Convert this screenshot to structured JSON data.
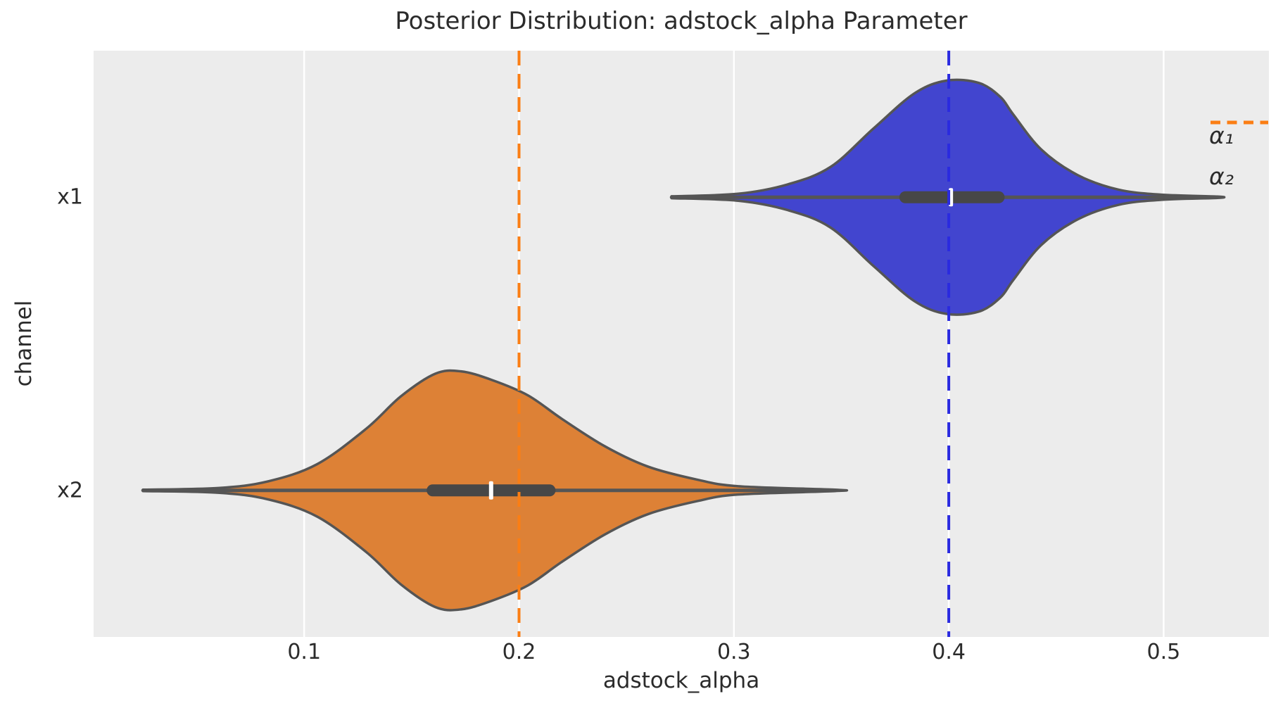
{
  "style": {
    "figure_bg": "#ffffff",
    "plot_bg": "#ececec",
    "grid_color": "#ffffff",
    "outline_color": "#555555",
    "whisker_color": "#555555",
    "box_color": "#474747",
    "median_color": "#ffffff",
    "text_color": "#2b2b2b"
  },
  "chart_data": {
    "type": "violin",
    "orientation": "horizontal",
    "title": "Posterior Distribution: adstock_alpha Parameter",
    "xlabel": "adstock_alpha",
    "ylabel": "channel",
    "categories": [
      "x1",
      "x2"
    ],
    "xlim": [
      0.002,
      0.549
    ],
    "xticks": [
      0.1,
      0.2,
      0.3,
      0.4,
      0.5
    ],
    "grid": true,
    "legend_position": "upper right",
    "series": [
      {
        "channel": "x1",
        "fill_color": "#4245cf",
        "median": 0.401,
        "q1": 0.377,
        "q3": 0.426,
        "whisker_low": 0.271,
        "whisker_high": 0.525,
        "kde_support": [
          0.271,
          0.525
        ],
        "max_halfwidth_frac": 0.199,
        "kde_profile": [
          [
            0.271,
            0.008
          ],
          [
            0.302,
            0.03
          ],
          [
            0.325,
            0.11
          ],
          [
            0.345,
            0.26
          ],
          [
            0.365,
            0.59
          ],
          [
            0.384,
            0.89
          ],
          [
            0.399,
            1.0
          ],
          [
            0.414,
            0.98
          ],
          [
            0.424,
            0.86
          ],
          [
            0.43,
            0.71
          ],
          [
            0.443,
            0.41
          ],
          [
            0.46,
            0.19
          ],
          [
            0.479,
            0.065
          ],
          [
            0.499,
            0.022
          ],
          [
            0.525,
            0.006
          ]
        ],
        "true_value_line": {
          "label": "α₁",
          "value": 0.4,
          "color": "#2a2ae0",
          "linestyle": "dashed"
        }
      },
      {
        "channel": "x2",
        "fill_color": "#dd8136",
        "median": 0.187,
        "q1": 0.157,
        "q3": 0.217,
        "whisker_low": 0.025,
        "whisker_high": 0.347,
        "kde_support": [
          0.025,
          0.347
        ],
        "max_halfwidth_frac": 0.203,
        "kde_profile": [
          [
            0.025,
            0.006
          ],
          [
            0.06,
            0.02
          ],
          [
            0.083,
            0.075
          ],
          [
            0.106,
            0.22
          ],
          [
            0.129,
            0.52
          ],
          [
            0.145,
            0.79
          ],
          [
            0.161,
            0.98
          ],
          [
            0.173,
            1.0
          ],
          [
            0.187,
            0.93
          ],
          [
            0.204,
            0.8
          ],
          [
            0.22,
            0.6
          ],
          [
            0.24,
            0.37
          ],
          [
            0.26,
            0.2
          ],
          [
            0.283,
            0.09
          ],
          [
            0.302,
            0.035
          ],
          [
            0.347,
            0.006
          ]
        ],
        "true_value_line": {
          "label": "α₂",
          "value": 0.2,
          "color": "#fb7e14",
          "linestyle": "dashed"
        }
      }
    ],
    "legend": [
      {
        "label": "α₁",
        "color": "#2a2ae0",
        "linestyle": "dashed"
      },
      {
        "label": "α₂",
        "color": "#fb7e14",
        "linestyle": "dashed"
      }
    ]
  }
}
